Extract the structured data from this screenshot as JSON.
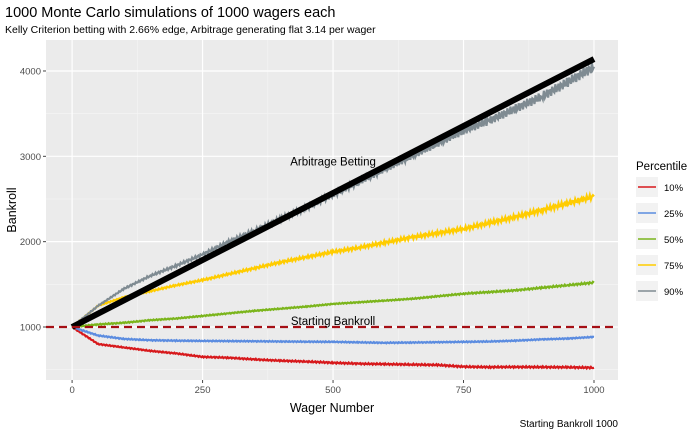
{
  "chart_data": {
    "type": "line",
    "title": "1000 Monte Carlo simulations of 1000 wagers each",
    "subtitle": "Kelly Criterion betting with 2.66% edge, Arbitrage generating flat 3.14 per wager",
    "xlabel": "Wager Number",
    "ylabel": "Bankroll",
    "caption": "Starting Bankroll 1000",
    "xlim": [
      -50,
      1046
    ],
    "ylim": [
      379,
      4363
    ],
    "xticks": [
      0,
      250,
      500,
      750,
      1000
    ],
    "xtick_labels": [
      "0",
      "250",
      "500",
      "750",
      "1000"
    ],
    "yticks": [
      1000,
      2000,
      3000,
      4000
    ],
    "ytick_labels": [
      "1000",
      "2000",
      "3000",
      "4000"
    ],
    "grid": true,
    "legend": {
      "title": "Percentile",
      "placement": "right"
    },
    "x": [
      0,
      50,
      100,
      150,
      200,
      250,
      300,
      350,
      400,
      450,
      500,
      550,
      600,
      650,
      700,
      750,
      800,
      850,
      900,
      950,
      1000
    ],
    "series": [
      {
        "name": "10%",
        "color": "#d7191c",
        "values": [
          1000,
          800,
          760,
          720,
          690,
          650,
          640,
          620,
          605,
          595,
          581,
          570,
          565,
          560,
          555,
          535,
          530,
          532,
          530,
          528,
          523
        ]
      },
      {
        "name": "25%",
        "color": "#5b8ce0",
        "values": [
          1000,
          900,
          860,
          845,
          840,
          837,
          835,
          833,
          830,
          828,
          826,
          820,
          815,
          818,
          822,
          826,
          830,
          840,
          855,
          865,
          884
        ]
      },
      {
        "name": "50%",
        "color": "#7bb51c",
        "values": [
          1000,
          1030,
          1050,
          1080,
          1100,
          1130,
          1160,
          1190,
          1215,
          1240,
          1270,
          1290,
          1310,
          1330,
          1360,
          1390,
          1410,
          1430,
          1460,
          1490,
          1520
        ]
      },
      {
        "name": "75%",
        "color": "#ffcc00",
        "values": [
          1000,
          1250,
          1350,
          1420,
          1490,
          1550,
          1620,
          1690,
          1760,
          1820,
          1880,
          1930,
          1990,
          2050,
          2100,
          2150,
          2220,
          2290,
          2370,
          2450,
          2530
        ]
      },
      {
        "name": "90%",
        "color": "#7f8b92",
        "values": [
          1000,
          1250,
          1450,
          1600,
          1720,
          1850,
          2000,
          2130,
          2270,
          2400,
          2550,
          2700,
          2850,
          3000,
          3150,
          3300,
          3420,
          3560,
          3700,
          3870,
          4050
        ]
      }
    ],
    "arbitrage": {
      "name": "Arbitrage Betting",
      "start": 1000,
      "per_wager": 3.14,
      "color": "#000000"
    },
    "reference_line": {
      "label": "Starting Bankroll",
      "value": 1000,
      "color": "#a50f15"
    },
    "annotations": [
      {
        "text": "Arbitrage Betting",
        "x": 500,
        "y": 2940
      },
      {
        "text": "Starting Bankroll",
        "x": 500,
        "y": 1070
      }
    ]
  }
}
